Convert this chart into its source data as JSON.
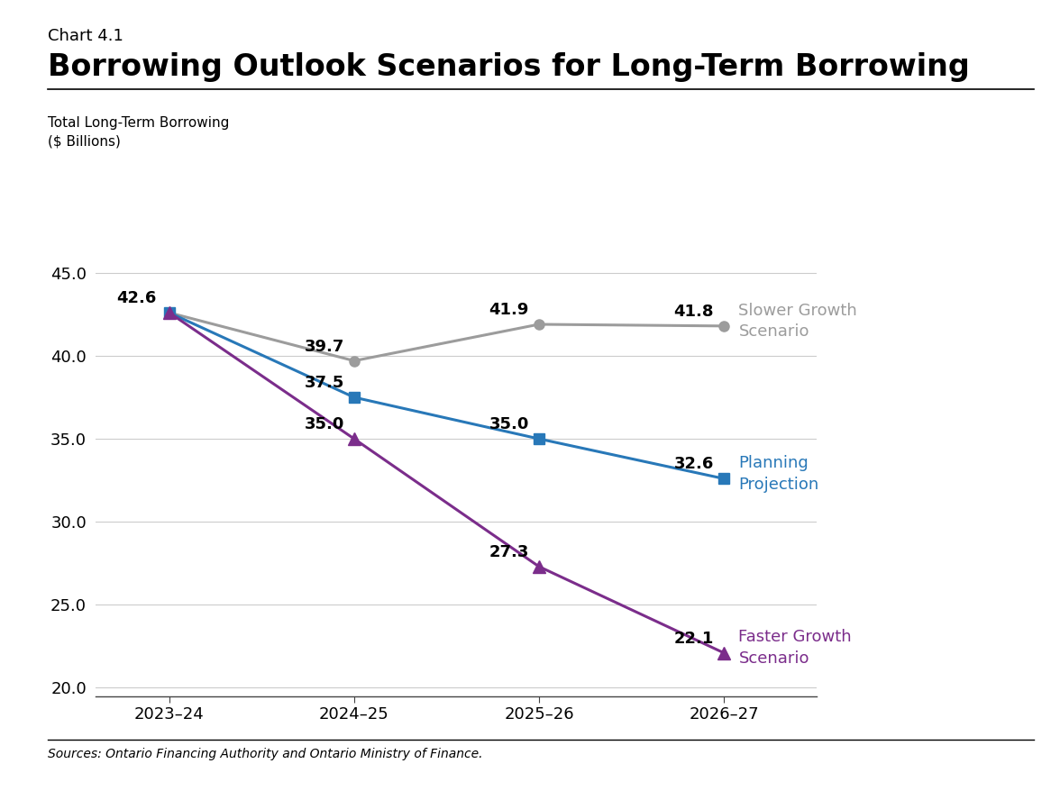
{
  "chart_label": "Chart 4.1",
  "title": "Borrowing Outlook Scenarios for Long-Term Borrowing",
  "ylabel_line1": "Total Long-Term Borrowing",
  "ylabel_line2": "($ Billions)",
  "source": "Sources: Ontario Financing Authority and Ontario Ministry of Finance.",
  "x_labels": [
    "2023–24",
    "2024–25",
    "2025–26",
    "2026–27"
  ],
  "slower_growth": [
    42.6,
    39.7,
    41.9,
    41.8
  ],
  "planning": [
    42.6,
    37.5,
    35.0,
    32.6
  ],
  "faster_growth": [
    42.6,
    35.0,
    27.3,
    22.1
  ],
  "slower_color": "#9c9c9c",
  "planning_color": "#2878b8",
  "faster_color": "#7b2d8b",
  "ylim_min": 19.5,
  "ylim_max": 46.5,
  "yticks": [
    20.0,
    25.0,
    30.0,
    35.0,
    40.0,
    45.0
  ],
  "background_color": "#ffffff",
  "title_fontsize": 24,
  "chart_label_fontsize": 13,
  "axis_label_fontsize": 11,
  "tick_fontsize": 13,
  "annotation_fontsize": 13,
  "legend_label_fontsize": 13
}
